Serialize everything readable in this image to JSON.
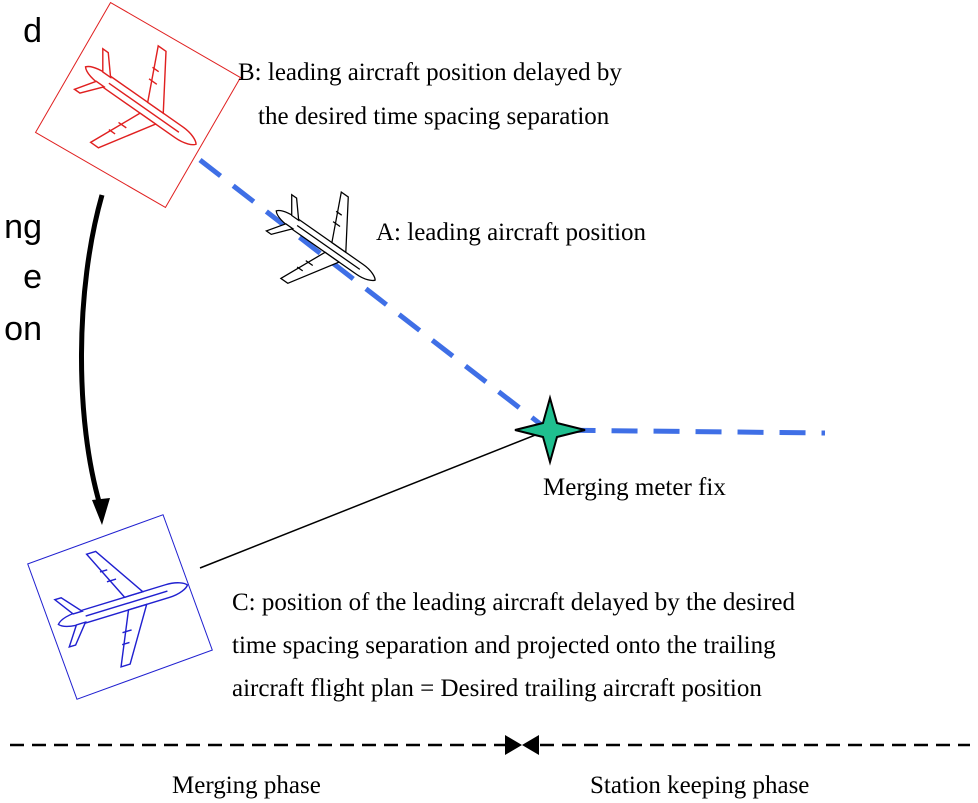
{
  "left_text": [
    "d",
    "ng",
    "e",
    "on"
  ],
  "labels": {
    "b": [
      "B: leading aircraft position delayed by",
      "the desired time spacing separation"
    ],
    "a": "A: leading aircraft position",
    "fix": "Merging meter fix",
    "c": [
      "C: position of the leading aircraft delayed by the desired",
      "time spacing separation and projected onto the trailing",
      "aircraft flight plan = Desired trailing aircraft position"
    ]
  },
  "phases": [
    "Merging phase",
    "Station keeping phase"
  ]
}
